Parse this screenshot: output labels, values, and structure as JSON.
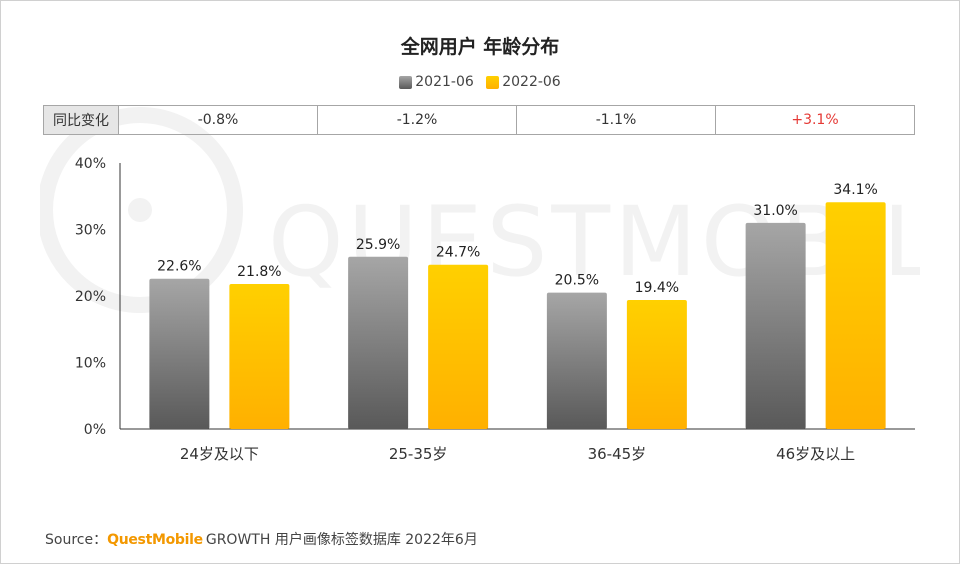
{
  "source": {
    "prefix": "Source：",
    "brand": "QuestMobile",
    "rest": "GROWTH 用户画像标签数据库 2022年6月"
  },
  "watermark": {
    "text": "QUESTMOBILE"
  },
  "yoy": {
    "label": "同比变化",
    "values": [
      "-0.8%",
      "-1.2%",
      "-1.1%",
      "+3.1%"
    ],
    "colors": [
      "#333333",
      "#333333",
      "#333333",
      "#e53935"
    ]
  },
  "chart_data": {
    "type": "bar",
    "title": "全网用户 年龄分布",
    "categories": [
      "24岁及以下",
      "25-35岁",
      "36-45岁",
      "46岁及以上"
    ],
    "series": [
      {
        "name": "2021-06",
        "values": [
          22.6,
          25.9,
          20.5,
          31.0
        ],
        "labels": [
          "22.6%",
          "25.9%",
          "20.5%",
          "31.0%"
        ],
        "color": "#808080"
      },
      {
        "name": "2022-06",
        "values": [
          21.8,
          24.7,
          19.4,
          34.1
        ],
        "labels": [
          "21.8%",
          "24.7%",
          "19.4%",
          "34.1%"
        ],
        "color": "#ffc000"
      }
    ],
    "ylim": [
      0,
      40
    ],
    "yticks": [
      0,
      10,
      20,
      30,
      40
    ],
    "ytick_labels": [
      "0%",
      "10%",
      "20%",
      "30%",
      "40%"
    ],
    "grid": false,
    "legend_position": "top-center",
    "xlabel": "",
    "ylabel": ""
  }
}
